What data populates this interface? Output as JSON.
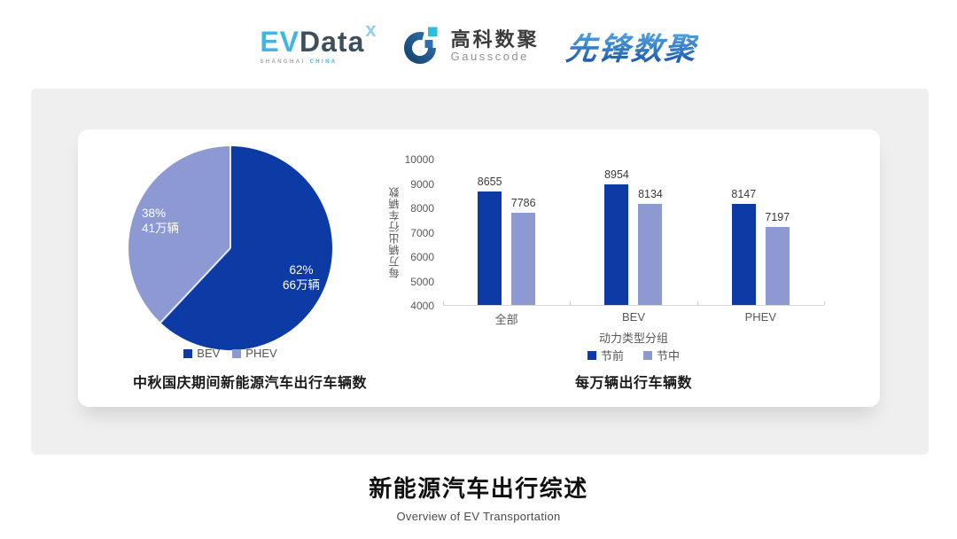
{
  "header": {
    "evdata": {
      "part_ev": "EV",
      "part_data": "Data",
      "superscript": "x",
      "sub_left": "SHANGHAI",
      "sub_right": "CHINA",
      "color_blue": "#3eb7e6",
      "color_dark": "#3f4e5c"
    },
    "gausscode": {
      "name_cn": "高科数聚",
      "name_en": "Gausscode",
      "mark_dark": "#1c4a76",
      "mark_cyan": "#28bfdd",
      "mark_blue": "#2e6fb0"
    },
    "pioneer": {
      "name": "先锋数聚",
      "color_top": "#58ade9",
      "color_bottom": "#1a55ac"
    }
  },
  "chart_data": [
    {
      "type": "pie",
      "title": "中秋国庆期间新能源汽车出行车辆数",
      "legend_position": "bottom",
      "slices": [
        {
          "name": "BEV",
          "percent": 62,
          "pct_label": "62%",
          "value_label": "66万辆",
          "color": "#0d3ba6"
        },
        {
          "name": "PHEV",
          "percent": 38,
          "pct_label": "38%",
          "value_label": "41万辆",
          "color": "#8d99d2"
        }
      ]
    },
    {
      "type": "bar",
      "title": "每万辆出行车辆数",
      "ylabel": "每万辆出行车辆数",
      "xlabel": "动力类型分组",
      "categories": [
        "全部",
        "BEV",
        "PHEV"
      ],
      "series": [
        {
          "name": "节前",
          "color": "#0d3ba6",
          "values": [
            8655,
            8954,
            8147
          ]
        },
        {
          "name": "节中",
          "color": "#8d99d2",
          "values": [
            7786,
            8134,
            7197
          ]
        }
      ],
      "ylim": [
        4000,
        10000
      ],
      "y_ticks": [
        10000,
        9000,
        8000,
        7000,
        6000,
        5000,
        4000
      ],
      "grid": false,
      "legend_position": "bottom"
    }
  ],
  "footer": {
    "title": "新能源汽车出行综述",
    "subtitle": "Overview of EV Transportation"
  }
}
